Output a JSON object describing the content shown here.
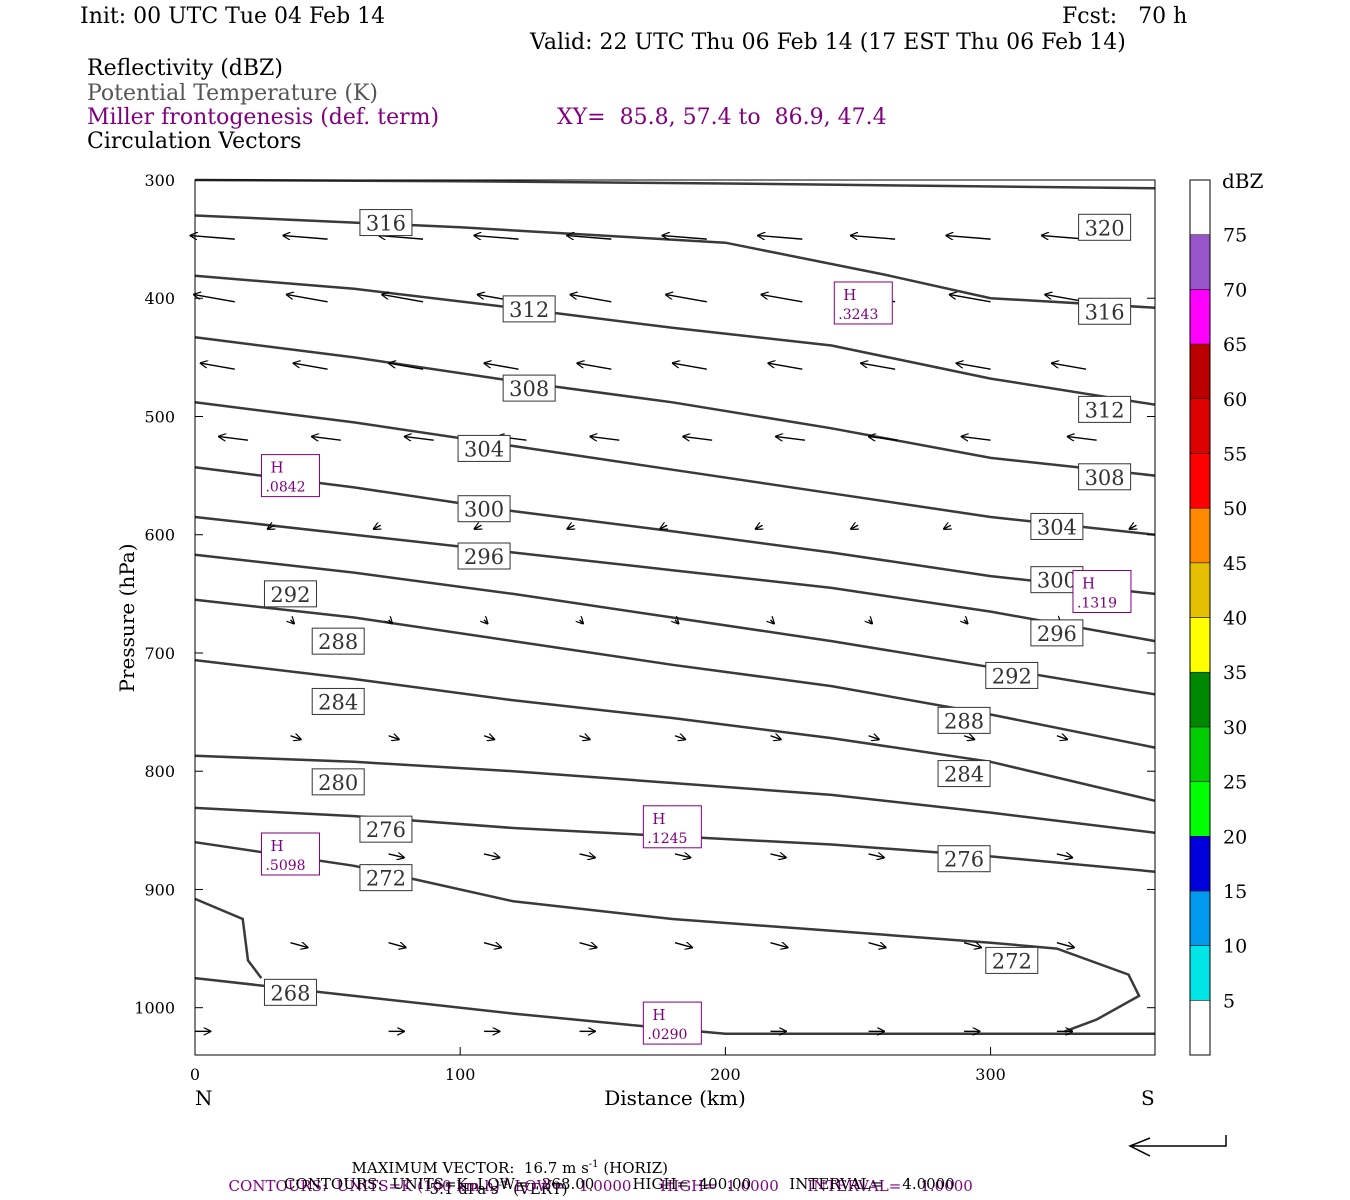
{
  "header": {
    "init": "Init: 00 UTC Tue 04 Feb 14",
    "fcst": "Fcst:   70 h",
    "valid": "Valid: 22 UTC Thu 06 Feb 14 (17 EST Thu 06 Feb 14)"
  },
  "fields": {
    "reflectivity": "Reflectivity (dBZ)",
    "theta": "Potential Temperature (K)",
    "frontogenesis": "Miller frontogenesis (def. term)",
    "xy": "XY=  85.8, 57.4 to  86.9, 47.4",
    "circulation": "Circulation Vectors"
  },
  "footer": {
    "max_vector_a": "MAXIMUM VECTOR:  16.7 m s",
    "max_vector_b": "(HORIZ)",
    "max_vector_c": "5.1 dPa s",
    "max_vector_d": "(VERT)",
    "sup_neg1": "-1",
    "contours1": "CONTOURS:  UNITS=K (100 km h)",
    "contours1_tail": " LOW=   1.0000      HIGH=  1.0000      INTERVAL=    1.0000",
    "contours2": "CONTOURS:  UNITS=K  LOW=   268.00        HIGH=  400.00        INTERVAL=    4.0000"
  },
  "chart_data": {
    "type": "cross-section",
    "xlabel": "Distance (km)",
    "ylabel": "Pressure (hPa)",
    "xlim": [
      0,
      362
    ],
    "ylim": [
      1040,
      300
    ],
    "x_ticks": [
      0,
      100,
      200,
      300
    ],
    "y_ticks": [
      300,
      400,
      500,
      600,
      700,
      800,
      900,
      1000
    ],
    "x_end_labels": {
      "left": "N",
      "right": "S"
    },
    "colorbar": {
      "label": "dBZ",
      "levels": [
        5,
        10,
        15,
        20,
        25,
        30,
        35,
        40,
        45,
        50,
        55,
        60,
        65,
        70,
        75
      ],
      "colors": [
        "#00e5e5",
        "#0099ee",
        "#0000dd",
        "#00ff00",
        "#00cc00",
        "#008800",
        "#ffff00",
        "#e5c000",
        "#ff8800",
        "#ff0000",
        "#dd0000",
        "#bb0000",
        "#ff00ff",
        "#9955cc",
        "#ffffff"
      ]
    },
    "theta_contours": [
      {
        "label": "320",
        "points": [
          [
            0,
            300
          ],
          [
            100,
            301
          ],
          [
            200,
            303
          ],
          [
            280,
            305
          ],
          [
            362,
            307
          ]
        ]
      },
      {
        "label": "316",
        "points": [
          [
            0,
            330
          ],
          [
            100,
            340
          ],
          [
            200,
            353
          ],
          [
            260,
            380
          ],
          [
            300,
            400
          ],
          [
            362,
            408
          ]
        ]
      },
      {
        "label": "312",
        "points": [
          [
            0,
            381
          ],
          [
            60,
            392
          ],
          [
            120,
            408
          ],
          [
            180,
            425
          ],
          [
            240,
            440
          ],
          [
            300,
            468
          ],
          [
            362,
            490
          ]
        ]
      },
      {
        "label": "308",
        "points": [
          [
            0,
            433
          ],
          [
            60,
            450
          ],
          [
            120,
            470
          ],
          [
            180,
            488
          ],
          [
            240,
            510
          ],
          [
            300,
            535
          ],
          [
            362,
            550
          ]
        ]
      },
      {
        "label": "304",
        "points": [
          [
            0,
            488
          ],
          [
            60,
            505
          ],
          [
            120,
            525
          ],
          [
            180,
            545
          ],
          [
            240,
            565
          ],
          [
            300,
            585
          ],
          [
            362,
            600
          ]
        ]
      },
      {
        "label": "300",
        "points": [
          [
            0,
            543
          ],
          [
            60,
            560
          ],
          [
            120,
            580
          ],
          [
            180,
            597
          ],
          [
            240,
            615
          ],
          [
            300,
            635
          ],
          [
            362,
            650
          ]
        ]
      },
      {
        "label": "296",
        "points": [
          [
            0,
            585
          ],
          [
            60,
            600
          ],
          [
            120,
            615
          ],
          [
            180,
            630
          ],
          [
            240,
            645
          ],
          [
            300,
            665
          ],
          [
            362,
            690
          ]
        ]
      },
      {
        "label": "292",
        "points": [
          [
            0,
            617
          ],
          [
            60,
            632
          ],
          [
            120,
            650
          ],
          [
            180,
            670
          ],
          [
            240,
            690
          ],
          [
            300,
            712
          ],
          [
            362,
            735
          ]
        ]
      },
      {
        "label": "288",
        "points": [
          [
            0,
            655
          ],
          [
            60,
            670
          ],
          [
            120,
            690
          ],
          [
            180,
            710
          ],
          [
            240,
            728
          ],
          [
            300,
            752
          ],
          [
            362,
            780
          ]
        ]
      },
      {
        "label": "284",
        "points": [
          [
            0,
            706
          ],
          [
            60,
            722
          ],
          [
            120,
            740
          ],
          [
            180,
            755
          ],
          [
            240,
            772
          ],
          [
            300,
            792
          ],
          [
            362,
            825
          ]
        ]
      },
      {
        "label": "280",
        "points": [
          [
            0,
            787
          ],
          [
            60,
            792
          ],
          [
            120,
            800
          ],
          [
            180,
            810
          ],
          [
            240,
            820
          ],
          [
            300,
            835
          ],
          [
            362,
            852
          ]
        ]
      },
      {
        "label": "276",
        "points": [
          [
            0,
            831
          ],
          [
            60,
            838
          ],
          [
            120,
            848
          ],
          [
            180,
            855
          ],
          [
            240,
            862
          ],
          [
            300,
            872
          ],
          [
            362,
            885
          ]
        ]
      },
      {
        "label": "272",
        "points": [
          [
            0,
            860
          ],
          [
            60,
            880
          ],
          [
            120,
            910
          ],
          [
            180,
            925
          ],
          [
            240,
            935
          ],
          [
            300,
            945
          ],
          [
            325,
            950
          ],
          [
            352,
            972
          ],
          [
            356,
            990
          ],
          [
            340,
            1010
          ],
          [
            328,
            1020
          ]
        ]
      },
      {
        "label": "268",
        "points": [
          [
            0,
            975
          ],
          [
            60,
            990
          ],
          [
            120,
            1005
          ],
          [
            180,
            1018
          ],
          [
            200,
            1022
          ],
          [
            362,
            1022
          ]
        ]
      },
      {
        "label": "",
        "points": [
          [
            0,
            908
          ],
          [
            18,
            925
          ],
          [
            20,
            960
          ],
          [
            25,
            975
          ]
        ]
      }
    ],
    "theta_labels": [
      {
        "text": "316",
        "x": 72,
        "p": 336
      },
      {
        "text": "320",
        "x": 343,
        "p": 340
      },
      {
        "text": "312",
        "x": 126,
        "p": 409
      },
      {
        "text": "316",
        "x": 343,
        "p": 411
      },
      {
        "text": "308",
        "x": 126,
        "p": 476
      },
      {
        "text": "312",
        "x": 343,
        "p": 494
      },
      {
        "text": "304",
        "x": 109,
        "p": 527
      },
      {
        "text": "308",
        "x": 343,
        "p": 551
      },
      {
        "text": "300",
        "x": 109,
        "p": 578
      },
      {
        "text": "304",
        "x": 325,
        "p": 593
      },
      {
        "text": "296",
        "x": 109,
        "p": 618
      },
      {
        "text": "300",
        "x": 325,
        "p": 638
      },
      {
        "text": "292",
        "x": 36,
        "p": 650
      },
      {
        "text": "296",
        "x": 325,
        "p": 683
      },
      {
        "text": "288",
        "x": 54,
        "p": 690
      },
      {
        "text": "292",
        "x": 308,
        "p": 719
      },
      {
        "text": "284",
        "x": 54,
        "p": 741
      },
      {
        "text": "288",
        "x": 290,
        "p": 757
      },
      {
        "text": "280",
        "x": 54,
        "p": 809
      },
      {
        "text": "284",
        "x": 290,
        "p": 802
      },
      {
        "text": "276",
        "x": 72,
        "p": 849
      },
      {
        "text": "276",
        "x": 290,
        "p": 874
      },
      {
        "text": "272",
        "x": 72,
        "p": 890
      },
      {
        "text": "272",
        "x": 308,
        "p": 960
      },
      {
        "text": "268",
        "x": 36,
        "p": 987
      }
    ],
    "frontogenesis_highs": [
      {
        "mark": "H",
        "value": ".3243",
        "x": 252,
        "p": 404
      },
      {
        "mark": "H",
        "value": ".0842",
        "x": 36,
        "p": 550
      },
      {
        "mark": "H",
        "value": ".1319",
        "x": 342,
        "p": 648
      },
      {
        "mark": "H",
        "value": ".1245",
        "x": 180,
        "p": 847
      },
      {
        "mark": "H",
        "value": ".5098",
        "x": 36,
        "p": 870
      },
      {
        "mark": "H",
        "value": ".0290",
        "x": 180,
        "p": 1013
      }
    ],
    "circulation_vectors": [
      {
        "p": 350,
        "x": [
          15,
          50,
          86,
          122,
          157,
          193,
          229,
          264,
          300,
          336
        ],
        "dx": -26,
        "dp": -3
      },
      {
        "p": 403,
        "x": [
          15,
          50,
          86,
          122,
          157,
          193,
          229,
          264,
          300,
          336
        ],
        "dx": -24,
        "dp": -6
      },
      {
        "p": 460,
        "x": [
          15,
          50,
          86,
          122,
          157,
          193,
          229,
          264,
          300,
          336
        ],
        "dx": -20,
        "dp": -5
      },
      {
        "p": 520,
        "x": [
          20,
          55,
          90,
          125,
          160,
          195,
          230,
          265,
          300,
          340
        ],
        "dx": -17,
        "dp": -3
      },
      {
        "p": 592,
        "x": [
          30,
          70,
          108,
          143,
          178,
          214,
          250,
          285,
          322,
          355
        ],
        "dx": -4,
        "dp": 3
      },
      {
        "p": 672,
        "x": [
          36,
          73,
          109,
          145,
          181,
          217,
          254,
          290,
          325
        ],
        "dx": 2,
        "dp": 3
      },
      {
        "p": 770,
        "x": [
          36,
          73,
          109,
          145,
          181,
          217,
          254,
          290,
          325
        ],
        "dx": 6,
        "dp": 3
      },
      {
        "p": 870,
        "x": [
          36,
          73,
          109,
          145,
          181,
          217,
          254,
          290,
          325
        ],
        "dx": 9,
        "dp": 3
      },
      {
        "p": 945,
        "x": [
          36,
          73,
          109,
          145,
          181,
          217,
          254,
          290,
          325
        ],
        "dx": 10,
        "dp": 4
      },
      {
        "p": 1020,
        "x": [
          0,
          73,
          109,
          145,
          181,
          217,
          254,
          290,
          325
        ],
        "dx": 9,
        "dp": 0
      }
    ]
  }
}
